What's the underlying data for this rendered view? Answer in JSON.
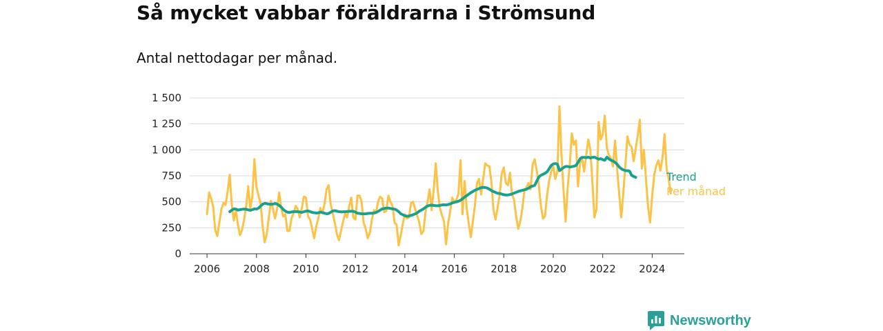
{
  "chart_data": {
    "type": "line",
    "title": "Så mycket vabbar föräldrarna i Strömsund",
    "subtitle": "Antal nettodagar per månad.",
    "xlabel": "",
    "ylabel": "",
    "x_ticks": [
      "2006",
      "2008",
      "2010",
      "2012",
      "2014",
      "2016",
      "2018",
      "2020",
      "2022",
      "2024"
    ],
    "y_ticks": [
      "0",
      "250",
      "500",
      "750",
      "1 000",
      "1 250",
      "1 500"
    ],
    "ylim": [
      0,
      1500
    ],
    "xlim": [
      2005.3,
      2025.3
    ],
    "grid": true,
    "series": [
      {
        "name": "Per månad",
        "color": "#fcc245",
        "x_start": 2006.0,
        "step": 0.0833333,
        "values": [
          380,
          590,
          530,
          450,
          230,
          170,
          300,
          430,
          490,
          470,
          600,
          760,
          480,
          320,
          420,
          280,
          180,
          230,
          330,
          460,
          650,
          430,
          550,
          910,
          640,
          560,
          480,
          260,
          110,
          190,
          350,
          510,
          430,
          340,
          430,
          590,
          440,
          360,
          380,
          220,
          220,
          340,
          390,
          460,
          430,
          350,
          440,
          550,
          540,
          360,
          330,
          240,
          150,
          260,
          340,
          440,
          390,
          480,
          620,
          660,
          480,
          390,
          300,
          190,
          130,
          220,
          310,
          390,
          350,
          460,
          540,
          350,
          330,
          560,
          560,
          500,
          300,
          240,
          150,
          200,
          330,
          420,
          400,
          500,
          550,
          530,
          400,
          410,
          560,
          500,
          460,
          300,
          280,
          80,
          180,
          290,
          380,
          340,
          350,
          490,
          500,
          430,
          370,
          300,
          190,
          220,
          400,
          500,
          620,
          420,
          620,
          870,
          600,
          440,
          370,
          310,
          90,
          290,
          410,
          540,
          490,
          520,
          580,
          900,
          380,
          700,
          440,
          290,
          160,
          310,
          470,
          680,
          720,
          570,
          720,
          870,
          850,
          840,
          690,
          420,
          330,
          440,
          570,
          770,
          830,
          680,
          660,
          780,
          570,
          520,
          360,
          240,
          310,
          440,
          610,
          640,
          680,
          620,
          860,
          910,
          800,
          660,
          460,
          340,
          360,
          560,
          700,
          790,
          840,
          720,
          790,
          1420,
          960,
          610,
          310,
          640,
          850,
          1160,
          1050,
          1090,
          650,
          870,
          920,
          790,
          950,
          1100,
          1000,
          680,
          350,
          430,
          1270,
          1100,
          1150,
          1330,
          1020,
          950,
          920,
          840,
          1090,
          820,
          570,
          350,
          590,
          860,
          1130,
          1050,
          1030,
          890,
          1010,
          1140,
          1290,
          820,
          1000,
          720,
          450,
          300,
          560,
          760,
          850,
          900,
          800,
          920,
          1150,
          820,
          720,
          580
        ]
      },
      {
        "name": "Trend",
        "color": "#1aa08f",
        "x_start": 2006.92,
        "step": 0.0833333,
        "values": [
          405,
          420,
          432,
          430,
          420,
          425,
          428,
          430,
          428,
          422,
          418,
          425,
          432,
          430,
          440,
          460,
          478,
          485,
          482,
          478,
          476,
          478,
          484,
          478,
          465,
          448,
          425,
          410,
          400,
          398,
          402,
          405,
          406,
          405,
          402,
          398,
          405,
          410,
          412,
          406,
          398,
          395,
          392,
          394,
          400,
          396,
          390,
          385,
          388,
          400,
          412,
          415,
          410,
          405,
          403,
          404,
          405,
          406,
          408,
          410,
          408,
          400,
          390,
          388,
          385,
          384,
          385,
          388,
          390,
          390,
          392,
          398,
          408,
          420,
          432,
          436,
          440,
          440,
          436,
          432,
          430,
          420,
          404,
          385,
          375,
          366,
          362,
          364,
          370,
          376,
          384,
          395,
          410,
          420,
          432,
          448,
          460,
          466,
          468,
          465,
          462,
          462,
          466,
          470,
          472,
          470,
          474,
          480,
          490,
          496,
          500,
          506,
          516,
          530,
          546,
          560,
          574,
          588,
          600,
          612,
          620,
          628,
          636,
          640,
          638,
          632,
          622,
          608,
          598,
          590,
          582,
          580,
          574,
          568,
          566,
          566,
          570,
          576,
          584,
          592,
          600,
          606,
          610,
          616,
          622,
          632,
          645,
          652,
          660,
          700,
          740,
          755,
          765,
          775,
          790,
          820,
          850,
          865,
          868,
          862,
          800,
          815,
          830,
          840,
          840,
          835,
          838,
          842,
          850,
          880,
          915,
          928,
          928,
          925,
          930,
          922,
          928,
          930,
          920,
          910,
          915,
          905,
          900,
          930,
          912,
          900,
          892,
          880,
          860,
          835,
          818,
          808,
          800,
          800,
          795,
          755,
          745,
          735
        ]
      }
    ],
    "series_labels": [
      "Trend",
      "Per månad"
    ]
  },
  "brand": {
    "name": "Newsworthy",
    "color": "#2aa198"
  }
}
